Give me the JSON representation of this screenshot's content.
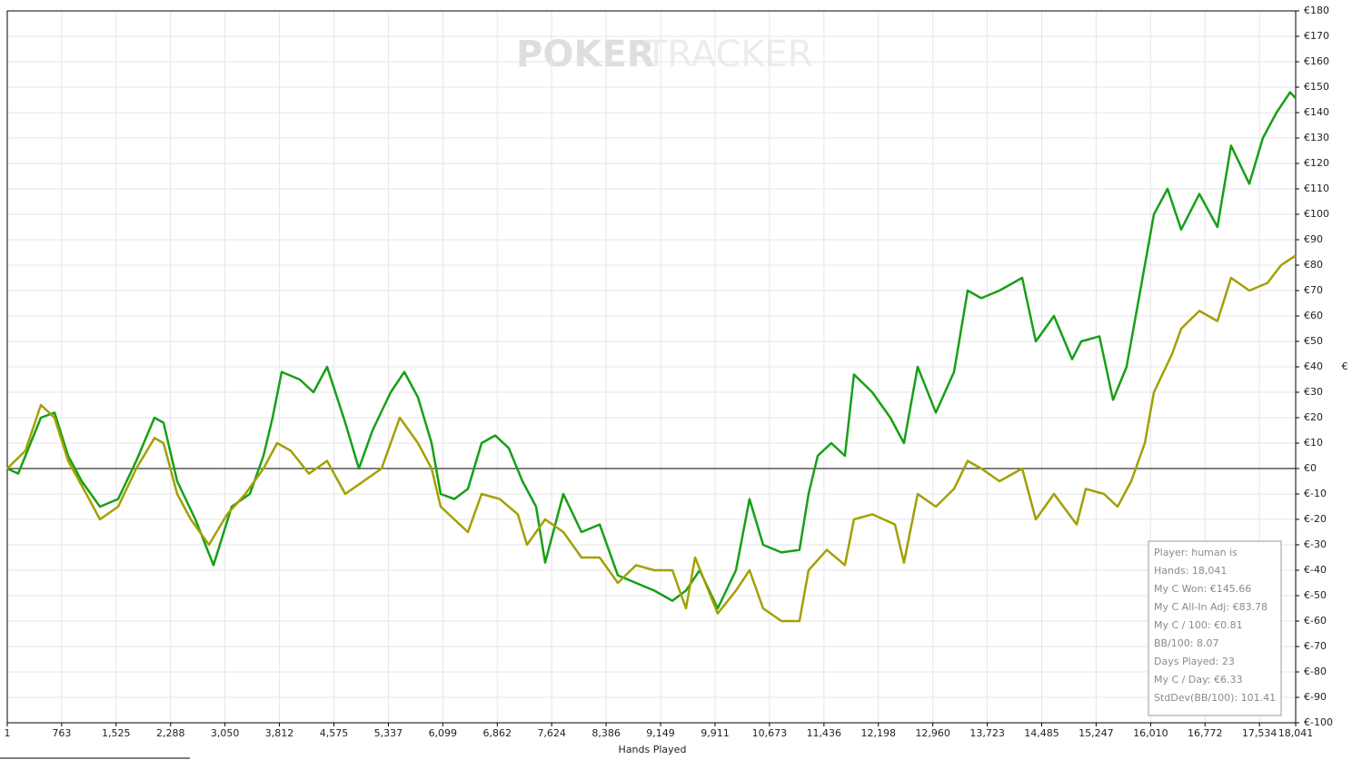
{
  "chart_data": {
    "type": "line",
    "watermark": [
      "POKER",
      "TRACKER"
    ],
    "x_label": "Hands Played",
    "y_label": "€",
    "xlim": [
      1,
      18041
    ],
    "ylim": [
      -100,
      180
    ],
    "grid": true,
    "xticks": [
      1,
      763,
      {
        "value": 1525,
        "label": "1,525"
      },
      {
        "value": 2288,
        "label": "2,288"
      },
      {
        "value": 3050,
        "label": "3,050"
      },
      {
        "value": 3812,
        "label": "3,812"
      },
      {
        "value": 4575,
        "label": "4,575"
      },
      {
        "value": 5337,
        "label": "5,337"
      },
      {
        "value": 6099,
        "label": "6,099"
      },
      {
        "value": 6862,
        "label": "6,862"
      },
      {
        "value": 7624,
        "label": "7,624"
      },
      {
        "value": 8386,
        "label": "8,386"
      },
      {
        "value": 9149,
        "label": "9,149"
      },
      {
        "value": 9911,
        "label": "9,911"
      },
      {
        "value": 10673,
        "label": "10,673"
      },
      {
        "value": 11436,
        "label": "11,436"
      },
      {
        "value": 12198,
        "label": "12,198"
      },
      {
        "value": 12960,
        "label": "12,960"
      },
      {
        "value": 13723,
        "label": "13,723"
      },
      {
        "value": 14485,
        "label": "14,485"
      },
      {
        "value": 15247,
        "label": "15,247"
      },
      {
        "value": 16010,
        "label": "16,010"
      },
      {
        "value": 16772,
        "label": "16,772"
      },
      {
        "value": 17534,
        "label": "17,534"
      },
      {
        "value": 18041,
        "label": "18,041"
      }
    ],
    "yticks": [
      {
        "value": 180,
        "label": "€180"
      },
      {
        "value": 170,
        "label": "€170"
      },
      {
        "value": 160,
        "label": "€160"
      },
      {
        "value": 150,
        "label": "€150"
      },
      {
        "value": 140,
        "label": "€140"
      },
      {
        "value": 130,
        "label": "€130"
      },
      {
        "value": 120,
        "label": "€120"
      },
      {
        "value": 110,
        "label": "€110"
      },
      {
        "value": 100,
        "label": "€100"
      },
      {
        "value": 90,
        "label": "€90"
      },
      {
        "value": 80,
        "label": "€80"
      },
      {
        "value": 70,
        "label": "€70"
      },
      {
        "value": 60,
        "label": "€60"
      },
      {
        "value": 50,
        "label": "€50"
      },
      {
        "value": 40,
        "label": "€40"
      },
      {
        "value": 30,
        "label": "€30"
      },
      {
        "value": 20,
        "label": "€20"
      },
      {
        "value": 10,
        "label": "€10"
      },
      {
        "value": 0,
        "label": "€0"
      },
      {
        "value": -10,
        "label": "€-10"
      },
      {
        "value": -20,
        "label": "€-20"
      },
      {
        "value": -30,
        "label": "€-30"
      },
      {
        "value": -40,
        "label": "€-40"
      },
      {
        "value": -50,
        "label": "€-50"
      },
      {
        "value": -60,
        "label": "€-60"
      },
      {
        "value": -70,
        "label": "€-70"
      },
      {
        "value": -80,
        "label": "€-80"
      },
      {
        "value": -90,
        "label": "€-90"
      },
      {
        "value": -100,
        "label": "€-100"
      }
    ],
    "series": [
      {
        "color": "#16a016",
        "x": [
          1,
          154,
          256,
          472,
          663,
          853,
          1044,
          1299,
          1553,
          1808,
          2062,
          2189,
          2380,
          2634,
          2889,
          3143,
          3398,
          3589,
          3716,
          3843,
          4097,
          4288,
          4479,
          4734,
          4924,
          5115,
          5370,
          5560,
          5751,
          5942,
          6069,
          6260,
          6451,
          6642,
          6833,
          7024,
          7214,
          7405,
          7532,
          7787,
          8041,
          8296,
          8550,
          8805,
          9059,
          9314,
          9504,
          9695,
          9949,
          10204,
          10394,
          10585,
          10840,
          11094,
          11221,
          11349,
          11539,
          11730,
          11857,
          12112,
          12366,
          12557,
          12748,
          13003,
          13257,
          13448,
          13639,
          13893,
          14211,
          14402,
          14657,
          14911,
          15038,
          15293,
          15484,
          15674,
          15865,
          16056,
          16247,
          16438,
          16692,
          16946,
          17137,
          17392,
          17582,
          17773,
          17964,
          18041
        ],
        "values": [
          0,
          -2,
          5,
          20,
          22,
          5,
          -5,
          -15,
          -12,
          3,
          20,
          18,
          -5,
          -20,
          -38,
          -15,
          -10,
          5,
          20,
          38,
          35,
          30,
          40,
          18,
          0,
          15,
          30,
          38,
          28,
          10,
          -10,
          -12,
          -8,
          10,
          13,
          8,
          -5,
          -15,
          -37,
          -10,
          -25,
          -22,
          -42,
          -45,
          -48,
          -52,
          -48,
          -40,
          -55,
          -40,
          -12,
          -30,
          -33,
          -32,
          -10,
          5,
          10,
          5,
          37,
          30,
          20,
          10,
          40,
          22,
          38,
          70,
          67,
          70,
          75,
          50,
          60,
          43,
          50,
          52,
          27,
          40,
          70,
          100,
          110,
          94,
          108,
          95,
          127,
          112,
          130,
          140,
          148,
          145.66
        ]
      },
      {
        "color": "#a3a000",
        "x": [
          1,
          256,
          472,
          663,
          853,
          1108,
          1299,
          1553,
          1808,
          2062,
          2189,
          2380,
          2571,
          2825,
          3080,
          3334,
          3589,
          3780,
          3970,
          4225,
          4479,
          4734,
          4988,
          5243,
          5497,
          5751,
          5942,
          6069,
          6260,
          6451,
          6642,
          6896,
          7150,
          7278,
          7532,
          7787,
          8041,
          8296,
          8550,
          8805,
          9059,
          9314,
          9504,
          9632,
          9949,
          10204,
          10394,
          10585,
          10840,
          11094,
          11221,
          11476,
          11730,
          11857,
          12112,
          12430,
          12557,
          12748,
          13003,
          13257,
          13448,
          13639,
          13893,
          14211,
          14402,
          14657,
          14975,
          15102,
          15357,
          15547,
          15738,
          15929,
          16056,
          16310,
          16438,
          16692,
          16946,
          17137,
          17392,
          17646,
          17837,
          18041
        ],
        "values": [
          0,
          7,
          25,
          20,
          3,
          -10,
          -20,
          -15,
          0,
          12,
          10,
          -10,
          -20,
          -30,
          -18,
          -10,
          0,
          10,
          7,
          -2,
          3,
          -10,
          -5,
          0,
          20,
          10,
          0,
          -15,
          -20,
          -25,
          -10,
          -12,
          -18,
          -30,
          -20,
          -25,
          -35,
          -35,
          -45,
          -38,
          -40,
          -40,
          -55,
          -35,
          -57,
          -48,
          -40,
          -55,
          -60,
          -60,
          -40,
          -32,
          -38,
          -20,
          -18,
          -22,
          -37,
          -10,
          -15,
          -8,
          3,
          0,
          -5,
          0,
          -20,
          -10,
          -22,
          -8,
          -10,
          -15,
          -5,
          10,
          30,
          45,
          55,
          62,
          58,
          75,
          70,
          73,
          80,
          83.78
        ]
      }
    ],
    "annotations": [
      "Player: human is",
      "Hands: 18,041",
      "My C Won: €145.66",
      "My C All-In Adj: €83.78",
      "My C / 100: €0.81",
      "BB/100: 8.07",
      "Days Played: 23",
      "My C / Day: €6.33",
      "StdDev(BB/100): 101.41"
    ]
  }
}
